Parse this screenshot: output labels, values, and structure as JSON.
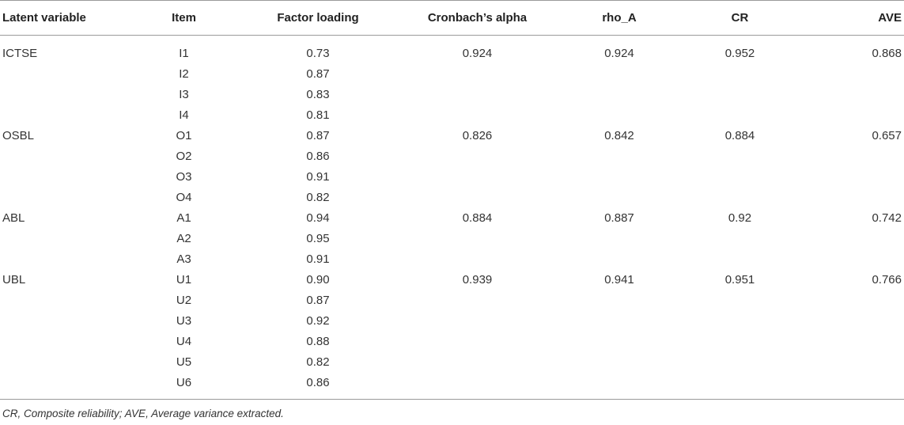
{
  "table": {
    "headers": [
      "Latent variable",
      "Item",
      "Factor loading",
      "Cronbach’s alpha",
      "rho_A",
      "CR",
      "AVE"
    ],
    "rows": [
      [
        "ICTSE",
        "I1",
        "0.73",
        "0.924",
        "0.924",
        "0.952",
        "0.868"
      ],
      [
        "",
        "I2",
        "0.87",
        "",
        "",
        "",
        ""
      ],
      [
        "",
        "I3",
        "0.83",
        "",
        "",
        "",
        ""
      ],
      [
        "",
        "I4",
        "0.81",
        "",
        "",
        "",
        ""
      ],
      [
        "OSBL",
        "O1",
        "0.87",
        "0.826",
        "0.842",
        "0.884",
        "0.657"
      ],
      [
        "",
        "O2",
        "0.86",
        "",
        "",
        "",
        ""
      ],
      [
        "",
        "O3",
        "0.91",
        "",
        "",
        "",
        ""
      ],
      [
        "",
        "O4",
        "0.82",
        "",
        "",
        "",
        ""
      ],
      [
        "ABL",
        "A1",
        "0.94",
        "0.884",
        "0.887",
        "0.92",
        "0.742"
      ],
      [
        "",
        "A2",
        "0.95",
        "",
        "",
        "",
        ""
      ],
      [
        "",
        "A3",
        "0.91",
        "",
        "",
        "",
        ""
      ],
      [
        "UBL",
        "U1",
        "0.90",
        "0.939",
        "0.941",
        "0.951",
        "0.766"
      ],
      [
        "",
        "U2",
        "0.87",
        "",
        "",
        "",
        ""
      ],
      [
        "",
        "U3",
        "0.92",
        "",
        "",
        "",
        ""
      ],
      [
        "",
        "U4",
        "0.88",
        "",
        "",
        "",
        ""
      ],
      [
        "",
        "U5",
        "0.82",
        "",
        "",
        "",
        ""
      ],
      [
        "",
        "U6",
        "0.86",
        "",
        "",
        "",
        ""
      ]
    ]
  },
  "footnote": "CR, Composite reliability; AVE, Average variance extracted."
}
